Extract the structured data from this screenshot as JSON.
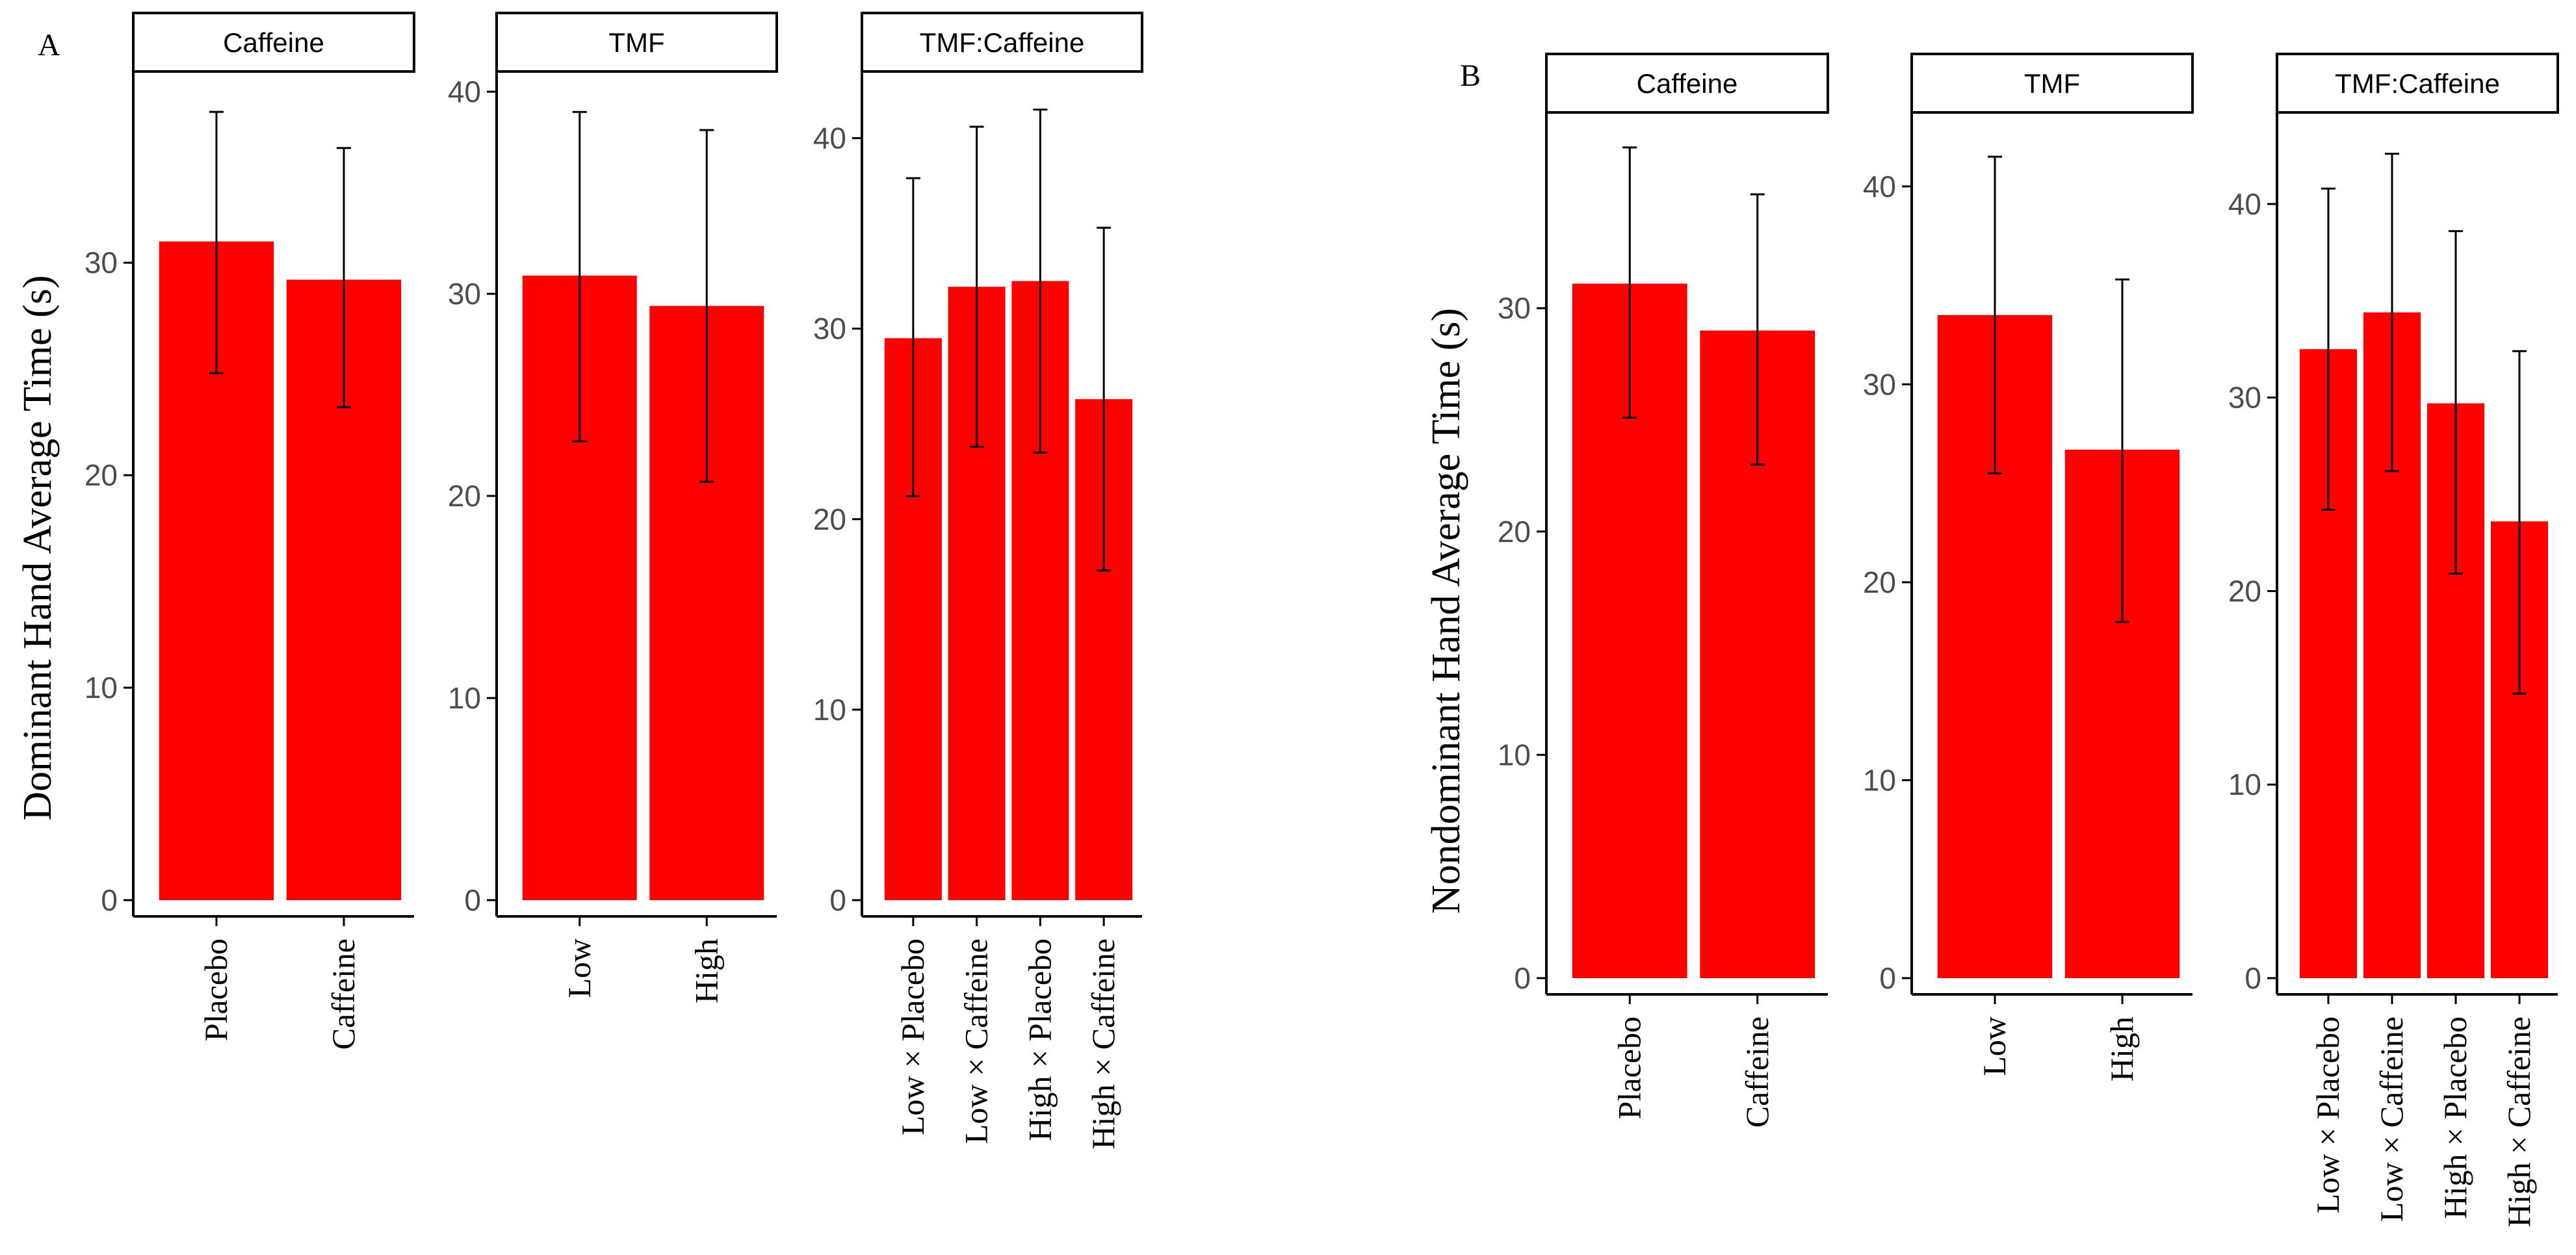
{
  "colors": {
    "bar": "#ff0000",
    "axis": "#000000",
    "tick_text": "#4d4d4d"
  },
  "chart_data": [
    {
      "panel_label": "A",
      "ylabel": "Dominant Hand Average Time (s)",
      "facets": [
        {
          "type": "bar",
          "strip_title": "Caffeine",
          "categories": [
            "Placebo",
            "Caffeine"
          ],
          "values": [
            31.0,
            29.2
          ],
          "error_low": [
            24.8,
            23.2
          ],
          "error_high": [
            37.1,
            35.4
          ],
          "ylim": [
            0,
            39
          ],
          "yticks": [
            0,
            10,
            20,
            30
          ]
        },
        {
          "type": "bar",
          "strip_title": "TMF",
          "categories": [
            "Low",
            "High"
          ],
          "values": [
            30.9,
            29.4
          ],
          "error_low": [
            22.7,
            20.7
          ],
          "error_high": [
            39.0,
            38.1
          ],
          "ylim": [
            0,
            41
          ],
          "yticks": [
            0,
            10,
            20,
            30,
            40
          ]
        },
        {
          "type": "bar",
          "strip_title": "TMF:Caffeine",
          "categories": [
            "Low × Placebo",
            "Low × Caffeine",
            "High × Placebo",
            "High × Caffeine"
          ],
          "values": [
            29.5,
            32.2,
            32.5,
            26.3
          ],
          "error_low": [
            21.2,
            23.8,
            23.5,
            17.3
          ],
          "error_high": [
            37.9,
            40.6,
            41.5,
            35.3
          ],
          "ylim": [
            0,
            43.5
          ],
          "yticks": [
            0,
            10,
            20,
            30,
            40
          ]
        }
      ]
    },
    {
      "panel_label": "B",
      "ylabel": "Nondominant Hand Average Time (s)",
      "facets": [
        {
          "type": "bar",
          "strip_title": "Caffeine",
          "categories": [
            "Placebo",
            "Caffeine"
          ],
          "values": [
            31.1,
            29.0
          ],
          "error_low": [
            25.1,
            23.0
          ],
          "error_high": [
            37.2,
            35.1
          ],
          "ylim": [
            0,
            39
          ],
          "yticks": [
            0,
            10,
            20,
            30
          ]
        },
        {
          "type": "bar",
          "strip_title": "TMF",
          "categories": [
            "Low",
            "High"
          ],
          "values": [
            33.5,
            26.7
          ],
          "error_low": [
            25.5,
            18.0
          ],
          "error_high": [
            41.5,
            35.3
          ],
          "ylim": [
            0,
            44
          ],
          "yticks": [
            0,
            10,
            20,
            30,
            40
          ]
        },
        {
          "type": "bar",
          "strip_title": "TMF:Caffeine",
          "categories": [
            "Low × Placebo",
            "Low × Caffeine",
            "High × Placebo",
            "High × Caffeine"
          ],
          "values": [
            32.5,
            34.4,
            29.7,
            23.6
          ],
          "error_low": [
            24.2,
            26.2,
            20.9,
            14.7
          ],
          "error_high": [
            40.8,
            42.6,
            38.6,
            32.4
          ],
          "ylim": [
            0,
            45
          ],
          "yticks": [
            0,
            10,
            20,
            30,
            40
          ]
        }
      ]
    }
  ]
}
